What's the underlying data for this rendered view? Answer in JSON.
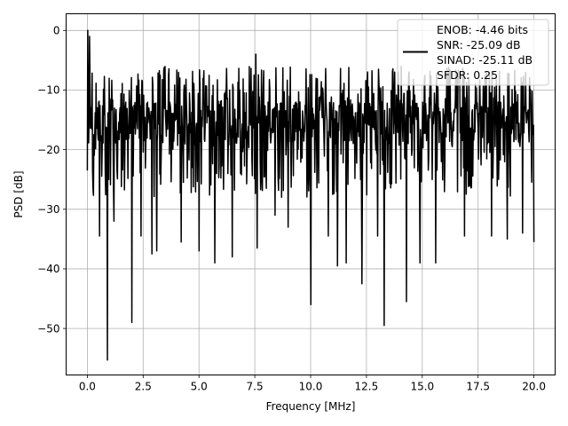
{
  "chart_data": {
    "type": "line",
    "xlabel": "Frequency [MHz]",
    "ylabel": "PSD [dB]",
    "xlim": [
      -0.95,
      20.95
    ],
    "ylim": [
      -57.8,
      2.8
    ],
    "xticks": [
      0.0,
      2.5,
      5.0,
      7.5,
      10.0,
      12.5,
      15.0,
      17.5,
      20.0
    ],
    "xtick_labels": [
      "0.0",
      "2.5",
      "5.0",
      "7.5",
      "10.0",
      "12.5",
      "15.0",
      "17.5",
      "20.0"
    ],
    "yticks": [
      0,
      -10,
      -20,
      -30,
      -40,
      -50
    ],
    "ytick_labels": [
      "0",
      "−10",
      "−20",
      "−30",
      "−40",
      "−50"
    ],
    "grid": true,
    "legend_position": "top-right",
    "series": [
      {
        "name": "ENOB: -4.46 bits\nSNR: -25.09 dB\nSINAD: -25.11 dB\nSFDR: 0.25",
        "legend_lines": [
          "ENOB: -4.46 bits",
          "SNR: -25.09 dB",
          "SINAD: -25.11 dB",
          "SFDR: 0.25"
        ],
        "color": "#000000",
        "x_range": [
          0.0,
          20.0
        ],
        "n_points": 1024,
        "noise_floor_db": [
          -28,
          -6
        ],
        "peaks": [
          {
            "x": 0.02,
            "y": 0.0
          },
          {
            "x": 0.1,
            "y": -1.0
          },
          {
            "x": 7.55,
            "y": -4.0
          }
        ],
        "dips": [
          {
            "x": 0.1,
            "y": -35.0
          },
          {
            "x": 0.55,
            "y": -34.5
          },
          {
            "x": 0.9,
            "y": -55.3
          },
          {
            "x": 1.2,
            "y": -32.0
          },
          {
            "x": 2.0,
            "y": -49.0
          },
          {
            "x": 2.4,
            "y": -34.5
          },
          {
            "x": 2.9,
            "y": -37.5
          },
          {
            "x": 3.1,
            "y": -37.0
          },
          {
            "x": 4.2,
            "y": -35.5
          },
          {
            "x": 5.0,
            "y": -37.0
          },
          {
            "x": 5.7,
            "y": -39.0
          },
          {
            "x": 6.5,
            "y": -38.0
          },
          {
            "x": 7.6,
            "y": -36.5
          },
          {
            "x": 8.4,
            "y": -31.0
          },
          {
            "x": 9.0,
            "y": -33.0
          },
          {
            "x": 10.0,
            "y": -46.0
          },
          {
            "x": 10.8,
            "y": -34.5
          },
          {
            "x": 11.2,
            "y": -39.5
          },
          {
            "x": 11.6,
            "y": -39.0
          },
          {
            "x": 12.3,
            "y": -42.5
          },
          {
            "x": 13.0,
            "y": -34.5
          },
          {
            "x": 13.3,
            "y": -49.5
          },
          {
            "x": 14.3,
            "y": -45.5
          },
          {
            "x": 14.9,
            "y": -39.0
          },
          {
            "x": 15.6,
            "y": -39.0
          },
          {
            "x": 16.9,
            "y": -34.5
          },
          {
            "x": 18.1,
            "y": -34.5
          },
          {
            "x": 18.8,
            "y": -35.0
          },
          {
            "x": 19.5,
            "y": -34.0
          },
          {
            "x": 20.0,
            "y": -35.5
          }
        ]
      }
    ]
  }
}
